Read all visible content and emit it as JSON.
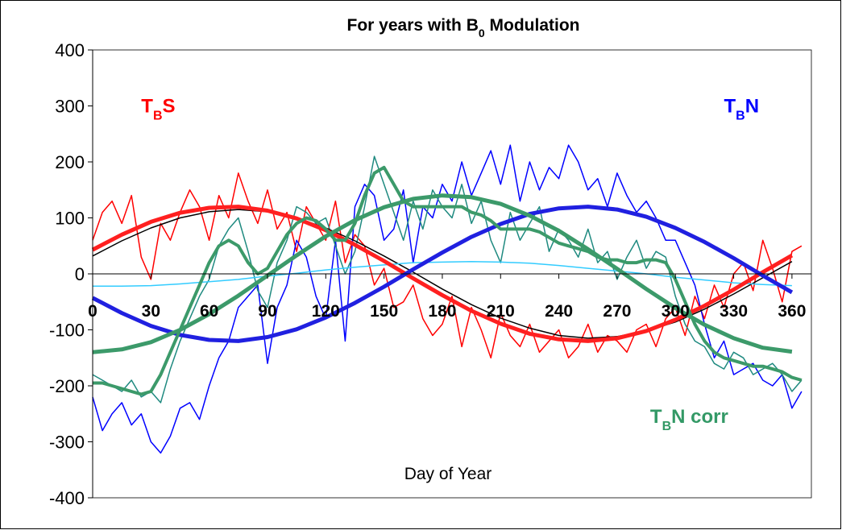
{
  "chart_data": {
    "type": "line",
    "title": {
      "main": "For years with B",
      "sub": "0",
      "rest": " Modulation"
    },
    "xlabel": "Day of Year",
    "xlim": [
      0,
      370
    ],
    "ylim": [
      -400,
      400
    ],
    "xticks": [
      0,
      30,
      60,
      90,
      120,
      150,
      180,
      210,
      240,
      270,
      300,
      330,
      360
    ],
    "yticks": [
      -400,
      -300,
      -200,
      -100,
      0,
      100,
      200,
      300,
      400
    ],
    "annotations": [
      {
        "main": "T",
        "sub": "B",
        "rest": "S",
        "color": "#ff0000",
        "x": 25,
        "y": 300
      },
      {
        "main": "T",
        "sub": "B",
        "rest": "N",
        "color": "#0000ff",
        "x": 325,
        "y": 300
      },
      {
        "main": "T",
        "sub": "B",
        "rest": "N corr",
        "color": "#339966",
        "x": 287,
        "y": -255
      }
    ],
    "series": [
      {
        "color": "#ff0000",
        "width": 1.5,
        "x": [
          0,
          5,
          10,
          15,
          20,
          25,
          30,
          35,
          40,
          45,
          50,
          55,
          60,
          65,
          70,
          75,
          80,
          85,
          90,
          95,
          100,
          105,
          110,
          115,
          120,
          125,
          130,
          135,
          140,
          145,
          150,
          155,
          160,
          165,
          170,
          175,
          180,
          185,
          190,
          195,
          200,
          205,
          210,
          215,
          220,
          225,
          230,
          235,
          240,
          245,
          250,
          255,
          260,
          265,
          270,
          275,
          280,
          285,
          290,
          295,
          300,
          305,
          310,
          315,
          320,
          325,
          330,
          335,
          340,
          345,
          350,
          355,
          360,
          365
        ],
        "values": [
          60,
          110,
          130,
          90,
          140,
          30,
          -10,
          90,
          60,
          110,
          150,
          120,
          60,
          140,
          100,
          180,
          130,
          90,
          150,
          80,
          110,
          40,
          120,
          90,
          60,
          130,
          20,
          70,
          50,
          -20,
          10,
          -60,
          -50,
          -20,
          -80,
          -110,
          -90,
          -40,
          -130,
          -60,
          -100,
          -150,
          -70,
          -110,
          -130,
          -90,
          -140,
          -120,
          -100,
          -150,
          -130,
          -90,
          -140,
          -110,
          -120,
          -140,
          -100,
          -90,
          -130,
          -80,
          -60,
          -110,
          -40,
          -80,
          -20,
          -60,
          0,
          20,
          -30,
          60,
          10,
          -50,
          40,
          50
        ]
      },
      {
        "color": "#0000ff",
        "width": 1.5,
        "x": [
          0,
          5,
          10,
          15,
          20,
          25,
          30,
          35,
          40,
          45,
          50,
          55,
          60,
          65,
          70,
          75,
          80,
          85,
          90,
          95,
          100,
          105,
          110,
          115,
          120,
          125,
          130,
          135,
          140,
          145,
          150,
          155,
          160,
          165,
          170,
          175,
          180,
          185,
          190,
          195,
          200,
          205,
          210,
          215,
          220,
          225,
          230,
          235,
          240,
          245,
          250,
          255,
          260,
          265,
          270,
          275,
          280,
          285,
          290,
          295,
          300,
          305,
          310,
          315,
          320,
          325,
          330,
          335,
          340,
          345,
          350,
          355,
          360,
          365
        ],
        "values": [
          -220,
          -280,
          -250,
          -230,
          -270,
          -250,
          -300,
          -320,
          -290,
          -240,
          -230,
          -260,
          -200,
          -150,
          -120,
          -60,
          -40,
          -20,
          -160,
          -60,
          -20,
          60,
          30,
          -40,
          -80,
          60,
          -120,
          120,
          160,
          140,
          60,
          80,
          150,
          20,
          120,
          100,
          160,
          130,
          200,
          140,
          180,
          220,
          160,
          230,
          130,
          200,
          150,
          190,
          170,
          230,
          200,
          150,
          170,
          120,
          180,
          140,
          110,
          130,
          100,
          60,
          60,
          20,
          -20,
          -90,
          -150,
          -120,
          -180,
          -170,
          -160,
          -190,
          -200,
          -180,
          -240,
          -210
        ]
      },
      {
        "color": "#1f8a80",
        "width": 1.5,
        "x": [
          0,
          5,
          10,
          15,
          20,
          25,
          30,
          35,
          40,
          45,
          50,
          55,
          60,
          65,
          70,
          75,
          80,
          85,
          90,
          95,
          100,
          105,
          110,
          115,
          120,
          125,
          130,
          135,
          140,
          145,
          150,
          155,
          160,
          165,
          170,
          175,
          180,
          185,
          190,
          195,
          200,
          205,
          210,
          215,
          220,
          225,
          230,
          235,
          240,
          245,
          250,
          255,
          260,
          265,
          270,
          275,
          280,
          285,
          290,
          295,
          300,
          305,
          310,
          315,
          320,
          325,
          330,
          335,
          340,
          345,
          350,
          355,
          360,
          365
        ],
        "values": [
          -180,
          -190,
          -200,
          -210,
          -190,
          -220,
          -210,
          -230,
          -170,
          -120,
          -80,
          -40,
          -10,
          50,
          80,
          100,
          40,
          -30,
          -60,
          20,
          60,
          120,
          110,
          90,
          100,
          50,
          0,
          40,
          120,
          210,
          160,
          110,
          60,
          130,
          80,
          150,
          120,
          100,
          160,
          90,
          130,
          60,
          20,
          110,
          60,
          90,
          120,
          40,
          80,
          60,
          30,
          80,
          20,
          40,
          -10,
          30,
          60,
          10,
          40,
          30,
          -40,
          -90,
          -120,
          -130,
          -160,
          -170,
          -140,
          -150,
          -180,
          -170,
          -160,
          -180,
          -210,
          -190
        ]
      },
      {
        "color": "#000000",
        "width": 1.5,
        "x": [
          0,
          15,
          30,
          45,
          60,
          75,
          90,
          105,
          120,
          135,
          150,
          165,
          180,
          195,
          210,
          225,
          240,
          255,
          270,
          285,
          300,
          315,
          330,
          345,
          360
        ],
        "values": [
          32,
          59,
          82,
          100,
          111,
          115,
          111,
          100,
          82,
          59,
          32,
          3,
          -27,
          -55,
          -79,
          -97,
          -110,
          -115,
          -112,
          -102,
          -86,
          -63,
          -36,
          -7,
          22
        ]
      },
      {
        "color": "#33ccff",
        "width": 1.5,
        "x": [
          0,
          15,
          30,
          45,
          60,
          75,
          90,
          105,
          120,
          135,
          150,
          165,
          180,
          195,
          210,
          225,
          240,
          255,
          270,
          285,
          300,
          315,
          330,
          345,
          360
        ],
        "values": [
          -22,
          -22,
          -21,
          -18,
          -14,
          -10,
          -4,
          1,
          7,
          12,
          16,
          20,
          21,
          22,
          21,
          19,
          15,
          10,
          5,
          0,
          -6,
          -11,
          -16,
          -19,
          -21
        ]
      },
      {
        "color": "#ff2020",
        "width": 5,
        "x": [
          0,
          15,
          30,
          45,
          60,
          75,
          90,
          105,
          120,
          135,
          150,
          165,
          180,
          195,
          210,
          225,
          240,
          255,
          270,
          285,
          300,
          315,
          330,
          345,
          360
        ],
        "values": [
          43,
          70,
          93,
          109,
          118,
          120,
          113,
          99,
          78,
          52,
          23,
          -8,
          -38,
          -66,
          -89,
          -107,
          -117,
          -120,
          -115,
          -102,
          -82,
          -57,
          -28,
          3,
          33
        ]
      },
      {
        "color": "#2020e0",
        "width": 5,
        "x": [
          0,
          15,
          30,
          45,
          60,
          75,
          90,
          105,
          120,
          135,
          150,
          165,
          180,
          195,
          210,
          225,
          240,
          255,
          270,
          285,
          300,
          315,
          330,
          345,
          360
        ],
        "values": [
          -43,
          -70,
          -93,
          -109,
          -118,
          -120,
          -113,
          -99,
          -78,
          -52,
          -23,
          8,
          38,
          66,
          89,
          107,
          117,
          120,
          115,
          102,
          82,
          57,
          28,
          -3,
          -33
        ]
      },
      {
        "color": "#3c9a6a",
        "width": 5,
        "x": [
          0,
          15,
          30,
          45,
          60,
          75,
          90,
          105,
          120,
          135,
          150,
          165,
          180,
          195,
          210,
          225,
          240,
          255,
          270,
          285,
          300,
          315,
          330,
          345,
          360
        ],
        "values": [
          -140,
          -135,
          -122,
          -100,
          -72,
          -39,
          -3,
          33,
          67,
          96,
          119,
          134,
          140,
          137,
          125,
          104,
          77,
          44,
          9,
          -27,
          -61,
          -91,
          -115,
          -132,
          -139
        ]
      },
      {
        "color": "#3c9a6a",
        "width": 4,
        "x": [
          0,
          5,
          10,
          15,
          20,
          25,
          30,
          35,
          40,
          45,
          50,
          55,
          60,
          65,
          70,
          75,
          80,
          85,
          90,
          95,
          100,
          105,
          110,
          115,
          120,
          125,
          130,
          135,
          140,
          145,
          150,
          155,
          160,
          165,
          170,
          175,
          180,
          185,
          190,
          195,
          200,
          205,
          210,
          215,
          220,
          225,
          230,
          235,
          240,
          245,
          250,
          255,
          260,
          265,
          270,
          275,
          280,
          285,
          290,
          295,
          300,
          305,
          310,
          315,
          320,
          325,
          330,
          335,
          340,
          345,
          350,
          355,
          360,
          365
        ],
        "values": [
          -195,
          -195,
          -200,
          -205,
          -210,
          -215,
          -210,
          -180,
          -140,
          -100,
          -60,
          -20,
          20,
          50,
          60,
          50,
          20,
          0,
          10,
          40,
          70,
          90,
          100,
          95,
          80,
          60,
          60,
          90,
          140,
          180,
          190,
          160,
          130,
          120,
          120,
          120,
          120,
          120,
          120,
          110,
          105,
          95,
          80,
          80,
          80,
          80,
          75,
          65,
          55,
          50,
          45,
          40,
          30,
          25,
          25,
          20,
          20,
          25,
          25,
          20,
          -10,
          -50,
          -90,
          -120,
          -140,
          -150,
          -155,
          -160,
          -165,
          -165,
          -170,
          -175,
          -185,
          -190
        ]
      }
    ]
  }
}
